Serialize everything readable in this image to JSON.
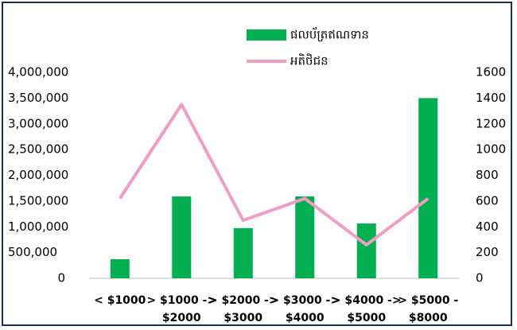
{
  "chart_data": {
    "type": "bar_line",
    "categories": [
      [
        "< $1000"
      ],
      [
        "> $1000 ->",
        "$2000"
      ],
      [
        "> $2000 ->",
        "$3000"
      ],
      [
        "> $3000 ->",
        "$4000"
      ],
      [
        "> $4000 ->",
        "$5000"
      ],
      [
        "> $5000 -",
        "$8000"
      ]
    ],
    "series": [
      {
        "name": "ផលប័ត្រឥណទាន",
        "type": "bar",
        "color": "#00b050",
        "values": [
          370000,
          1590000,
          975000,
          1590000,
          1065000,
          3500000
        ]
      },
      {
        "name": "អតិថិជន",
        "type": "line",
        "axis": "y2",
        "color": "#f19cc3",
        "values": [
          620,
          1350,
          450,
          620,
          260,
          620
        ]
      }
    ],
    "ylim": [
      0,
      4000000
    ],
    "yticks": [
      0,
      {
        "value": 500000,
        "label": "500,000"
      },
      {
        "value": 1000000,
        "label": "1,000,000"
      },
      {
        "value": 1500000,
        "label": "1,500,000"
      },
      {
        "value": 2000000,
        "label": "2,000,000"
      },
      {
        "value": 2500000,
        "label": "2,500,000"
      },
      {
        "value": 3000000,
        "label": "3,000,000"
      },
      {
        "value": 3500000,
        "label": "3,500,000"
      },
      {
        "value": 4000000,
        "label": "4,000,000"
      }
    ],
    "y2lim": [
      0,
      1600
    ],
    "y2ticks": [
      0,
      200,
      400,
      600,
      800,
      1000,
      1200,
      1400,
      1600
    ],
    "legend": "top"
  }
}
